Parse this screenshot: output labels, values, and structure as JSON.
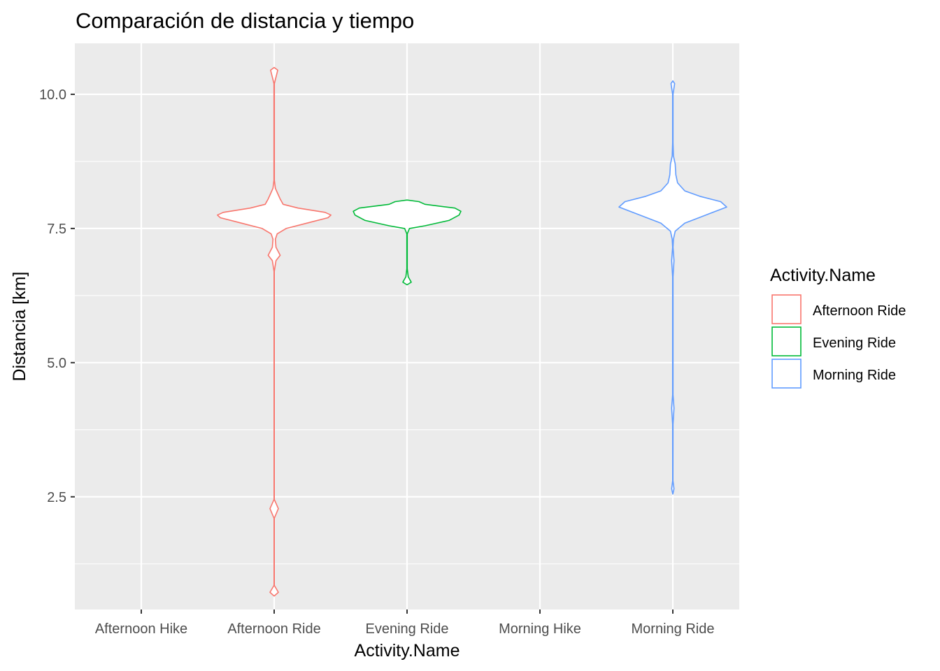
{
  "chart_data": {
    "type": "violin",
    "title": "Comparación de distancia y tiempo",
    "xlabel": "Activity.Name",
    "ylabel": "Distancia [km]",
    "categories": [
      "Afternoon Hike",
      "Afternoon Ride",
      "Evening Ride",
      "Morning Hike",
      "Morning Ride"
    ],
    "ylim": [
      0.4,
      10.95
    ],
    "yticks": [
      2.5,
      5.0,
      7.5,
      10.0
    ],
    "ytick_labels": [
      "2.5",
      "5.0",
      "7.5",
      "10.0"
    ],
    "grid": true,
    "legend": {
      "title": "Activity.Name",
      "placement": "right",
      "entries": [
        "Afternoon Ride",
        "Evening Ride",
        "Morning Ride"
      ]
    },
    "series": [
      {
        "name": "Afternoon Ride",
        "category": "Afternoon Ride",
        "color": "#F8766D",
        "range": [
          0.65,
          10.5
        ],
        "density": [
          [
            0.65,
            0.0
          ],
          [
            0.72,
            0.07
          ],
          [
            0.85,
            0.002
          ],
          [
            2.1,
            0.002
          ],
          [
            2.28,
            0.07
          ],
          [
            2.45,
            0.002
          ],
          [
            6.7,
            0.002
          ],
          [
            6.9,
            0.03
          ],
          [
            7.0,
            0.1
          ],
          [
            7.15,
            0.03
          ],
          [
            7.3,
            0.02
          ],
          [
            7.4,
            0.05
          ],
          [
            7.5,
            0.2
          ],
          [
            7.6,
            0.55
          ],
          [
            7.7,
            0.9
          ],
          [
            7.75,
            0.95
          ],
          [
            7.8,
            0.85
          ],
          [
            7.88,
            0.4
          ],
          [
            7.95,
            0.15
          ],
          [
            8.05,
            0.1
          ],
          [
            8.15,
            0.06
          ],
          [
            8.25,
            0.02
          ],
          [
            8.4,
            0.003
          ],
          [
            10.2,
            0.003
          ],
          [
            10.45,
            0.06
          ],
          [
            10.5,
            0.0
          ]
        ]
      },
      {
        "name": "Evening Ride",
        "category": "Evening Ride",
        "color": "#00BA38",
        "range": [
          6.45,
          8.03
        ],
        "density": [
          [
            6.45,
            0.0
          ],
          [
            6.5,
            0.07
          ],
          [
            6.6,
            0.02
          ],
          [
            6.75,
            0.003
          ],
          [
            7.4,
            0.003
          ],
          [
            7.5,
            0.04
          ],
          [
            7.55,
            0.3
          ],
          [
            7.65,
            0.7
          ],
          [
            7.75,
            0.87
          ],
          [
            7.82,
            0.9
          ],
          [
            7.88,
            0.8
          ],
          [
            7.95,
            0.3
          ],
          [
            8.0,
            0.2
          ],
          [
            8.03,
            0.0
          ]
        ]
      },
      {
        "name": "Morning Ride",
        "category": "Morning Ride",
        "color": "#619CFF",
        "range": [
          2.55,
          10.25
        ],
        "density": [
          [
            2.55,
            0.0
          ],
          [
            2.65,
            0.02
          ],
          [
            2.8,
            0.002
          ],
          [
            3.85,
            0.003
          ],
          [
            4.15,
            0.02
          ],
          [
            4.4,
            0.003
          ],
          [
            6.6,
            0.003
          ],
          [
            6.9,
            0.02
          ],
          [
            7.15,
            0.003
          ],
          [
            7.3,
            0.01
          ],
          [
            7.45,
            0.04
          ],
          [
            7.6,
            0.2
          ],
          [
            7.75,
            0.55
          ],
          [
            7.9,
            0.9
          ],
          [
            8.0,
            0.8
          ],
          [
            8.1,
            0.45
          ],
          [
            8.2,
            0.2
          ],
          [
            8.35,
            0.08
          ],
          [
            8.5,
            0.05
          ],
          [
            8.7,
            0.04
          ],
          [
            8.85,
            0.01
          ],
          [
            9.1,
            0.003
          ],
          [
            10.0,
            0.003
          ],
          [
            10.2,
            0.03
          ],
          [
            10.25,
            0.0
          ]
        ]
      }
    ]
  }
}
